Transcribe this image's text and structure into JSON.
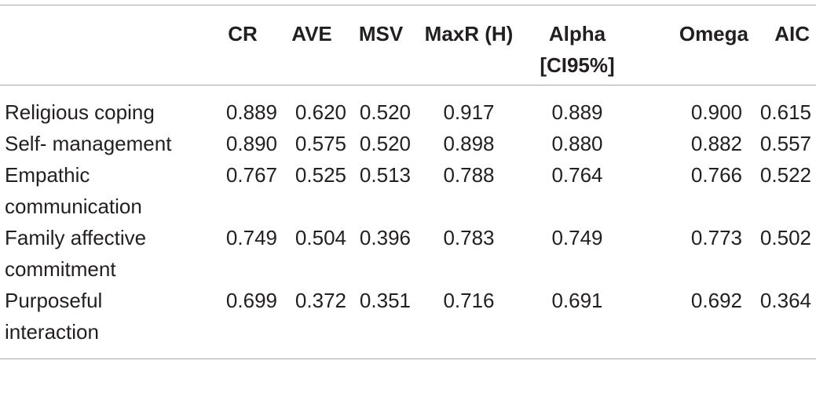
{
  "table": {
    "headers": [
      "",
      "CR",
      "AVE",
      "MSV",
      "MaxR (H)",
      "Alpha [CI95%]",
      "Omega",
      "AIC"
    ],
    "header_alpha_line1": "Alpha",
    "header_alpha_line2": "[CI95%]",
    "rows": [
      {
        "label_line1": "Religious coping",
        "label_line2": "",
        "cr": "0.889",
        "ave": "0.620",
        "msv": "0.520",
        "maxr": "0.917",
        "alpha": "0.889",
        "omega": "0.900",
        "aic": "0.615"
      },
      {
        "label_line1": "Self- management",
        "label_line2": "",
        "cr": "0.890",
        "ave": "0.575",
        "msv": "0.520",
        "maxr": "0.898",
        "alpha": "0.880",
        "omega": "0.882",
        "aic": "0.557"
      },
      {
        "label_line1": "Empathic",
        "label_line2": "communication",
        "cr": "0.767",
        "ave": "0.525",
        "msv": "0.513",
        "maxr": "0.788",
        "alpha": "0.764",
        "omega": "0.766",
        "aic": "0.522"
      },
      {
        "label_line1": "Family affective",
        "label_line2": "commitment",
        "cr": "0.749",
        "ave": "0.504",
        "msv": "0.396",
        "maxr": "0.783",
        "alpha": "0.749",
        "omega": "0.773",
        "aic": "0.502"
      },
      {
        "label_line1": "Purposeful",
        "label_line2": "interaction",
        "cr": "0.699",
        "ave": "0.372",
        "msv": "0.351",
        "maxr": "0.716",
        "alpha": "0.691",
        "omega": "0.692",
        "aic": "0.364"
      }
    ]
  }
}
